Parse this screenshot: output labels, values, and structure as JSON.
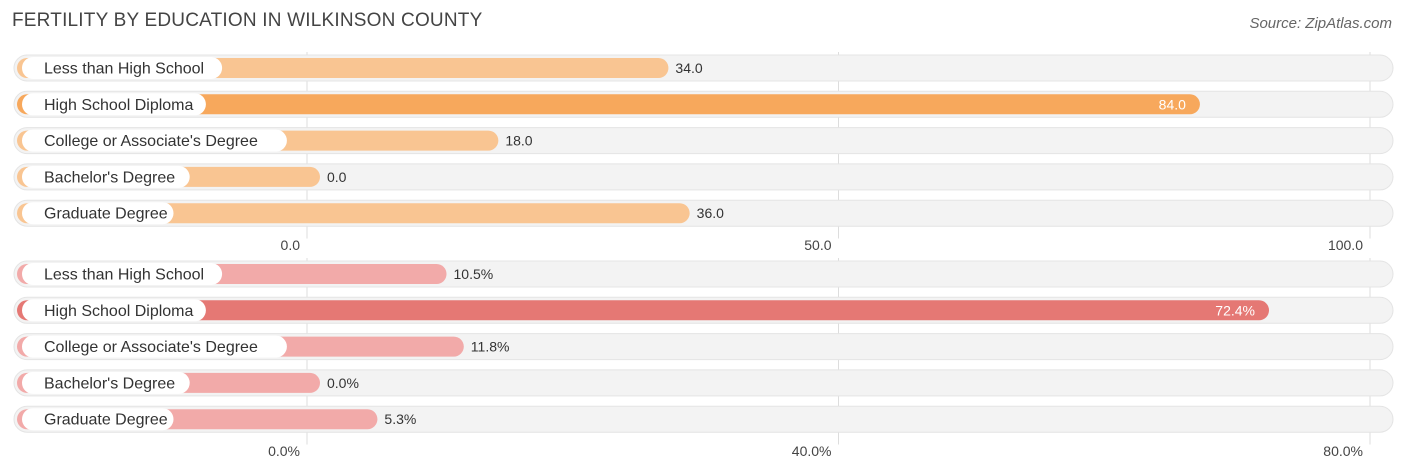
{
  "header": {
    "title": "FERTILITY BY EDUCATION IN WILKINSON COUNTY",
    "source": "Source: ZipAtlas.com"
  },
  "chart_data": [
    {
      "type": "bar",
      "orientation": "horizontal",
      "categories": [
        "Less than High School",
        "High School Diploma",
        "College or Associate's Degree",
        "Bachelor's Degree",
        "Graduate Degree"
      ],
      "values": [
        34.0,
        84.0,
        18.0,
        0.0,
        36.0
      ],
      "value_labels": [
        "34.0",
        "84.0",
        "18.0",
        "0.0",
        "36.0"
      ],
      "xlim": [
        0,
        100
      ],
      "ticks": [
        0,
        50,
        100
      ],
      "tick_labels": [
        "0.0",
        "50.0",
        "100.0"
      ],
      "colors": {
        "bar": "#f9c592",
        "highlight": "#f7a85c"
      },
      "highlight_index": 1
    },
    {
      "type": "bar",
      "orientation": "horizontal",
      "categories": [
        "Less than High School",
        "High School Diploma",
        "College or Associate's Degree",
        "Bachelor's Degree",
        "Graduate Degree"
      ],
      "values": [
        10.5,
        72.4,
        11.8,
        0.0,
        5.3
      ],
      "value_labels": [
        "10.5%",
        "72.4%",
        "11.8%",
        "0.0%",
        "5.3%"
      ],
      "xlim": [
        0,
        80
      ],
      "ticks": [
        0,
        40,
        80
      ],
      "tick_labels": [
        "0.0%",
        "40.0%",
        "80.0%"
      ],
      "colors": {
        "bar": "#f2aaa9",
        "highlight": "#e57874"
      },
      "highlight_index": 1
    }
  ]
}
